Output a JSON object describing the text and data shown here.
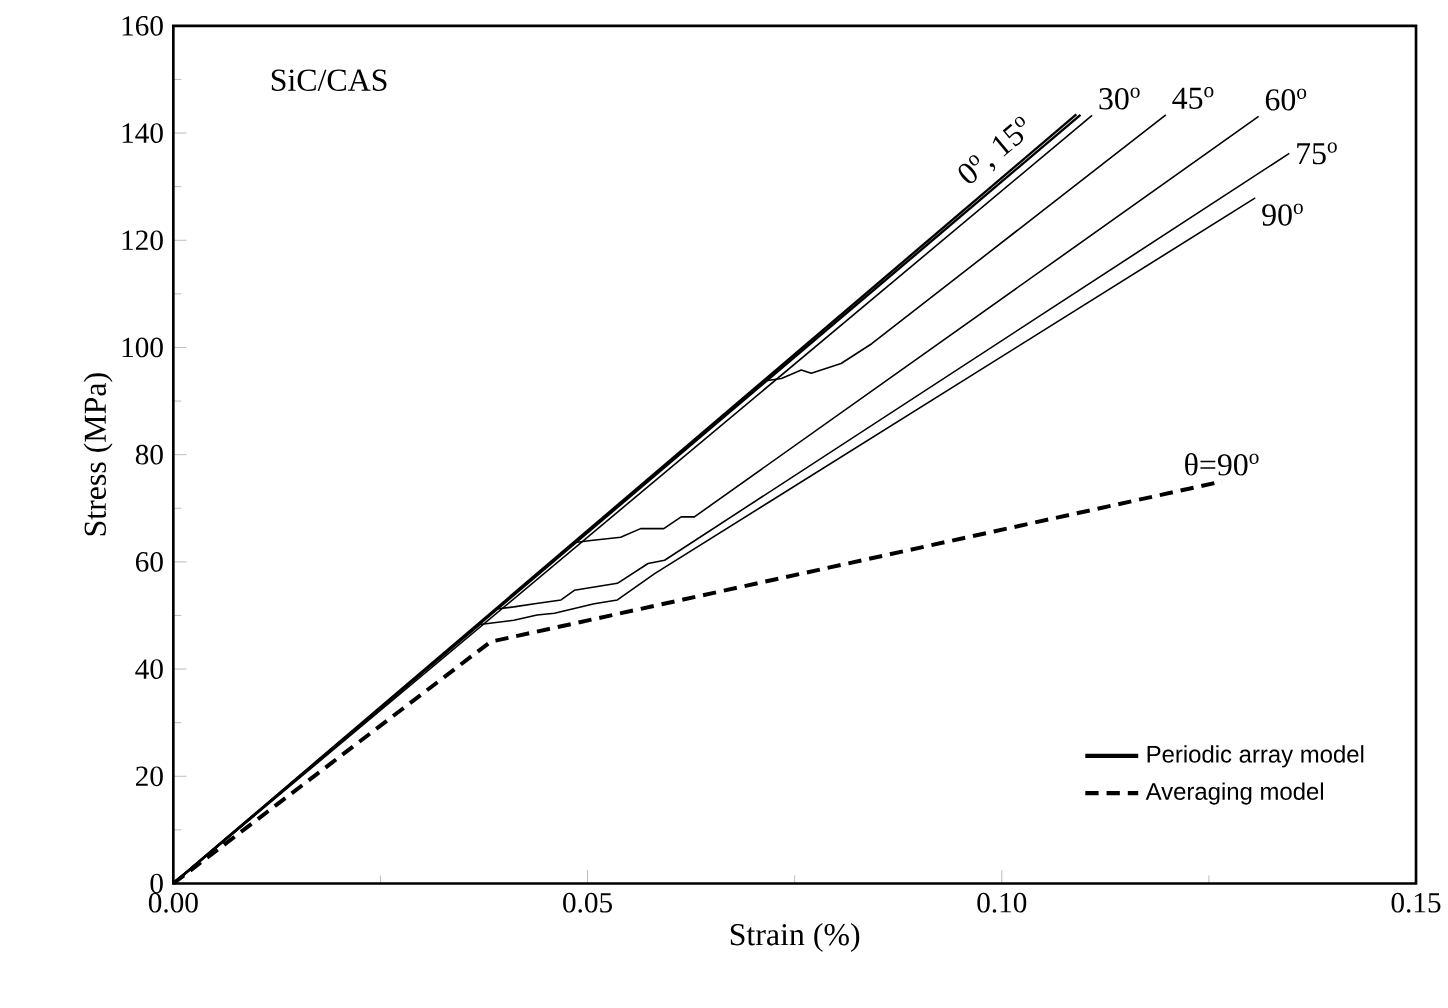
{
  "chart_data": {
    "type": "line",
    "xlabel": "Strain (%)",
    "ylabel": "Stress (MPa)",
    "xlim": [
      0,
      0.15
    ],
    "ylim": [
      0,
      160
    ],
    "xticks": [
      {
        "value": 0,
        "label": "0.00"
      },
      {
        "value": 0.05,
        "label": "0.05"
      },
      {
        "value": 0.1,
        "label": "0.10"
      },
      {
        "value": 0.15,
        "label": "0.15"
      }
    ],
    "yticks": [
      0,
      20,
      40,
      60,
      80,
      100,
      120,
      140,
      160
    ],
    "grid": false,
    "legend": "bottom right",
    "marker": "none",
    "series": [
      {
        "name": "Periodic array model",
        "color": "#000000",
        "line_style": "solid",
        "x": [
          0,
          0.109
        ],
        "values": [
          0,
          143.5
        ]
      },
      {
        "color": "#000000",
        "line_style": "solid",
        "x": [
          0,
          0.1095
        ],
        "values": [
          0,
          143.4
        ]
      },
      {
        "color": "#000000",
        "line_style": "solid",
        "x": [
          0,
          0.1109
        ],
        "values": [
          0,
          143.3
        ]
      },
      {
        "color": "#000000",
        "line_style": "solid",
        "x": [
          0,
          0.0715,
          0.0734,
          0.0758,
          0.077,
          0.0806,
          0.0843,
          0.1198
        ],
        "values": [
          0,
          93.8,
          94.2,
          95.8,
          95.2,
          97.0,
          100.7,
          143.4
        ]
      },
      {
        "color": "#000000",
        "line_style": "solid",
        "x": [
          0,
          0.0485,
          0.0504,
          0.054,
          0.0564,
          0.0592,
          0.0613,
          0.0629,
          0.131
        ],
        "values": [
          0,
          63.6,
          64.0,
          64.6,
          66.2,
          66.2,
          68.4,
          68.4,
          143.1
        ]
      },
      {
        "color": "#000000",
        "line_style": "solid",
        "x": [
          0,
          0.039,
          0.0411,
          0.0436,
          0.0468,
          0.0484,
          0.0536,
          0.0573,
          0.0593,
          0.1347
        ],
        "values": [
          0,
          51.2,
          51.6,
          52.2,
          52.9,
          54.7,
          56.0,
          59.7,
          60.3,
          136.2
        ]
      },
      {
        "color": "#000000",
        "line_style": "solid",
        "x": [
          0,
          0.037,
          0.0411,
          0.0439,
          0.046,
          0.0508,
          0.0536,
          0.0581,
          0.1306
        ],
        "values": [
          0,
          48.3,
          49.1,
          50.1,
          50.4,
          52.2,
          52.9,
          57.8,
          127.9
        ]
      },
      {
        "name": "Averaging model",
        "color": "#000000",
        "line_style": "dashed",
        "x": [
          0,
          0.0383,
          0.1266
        ],
        "values": [
          0,
          45.1,
          75.0
        ]
      }
    ],
    "annotations": [
      "SiC/CAS",
      {
        "text": "0$^{o}$, 15$^{o}$",
        "x": 0.1093,
        "y": 143.4
      },
      {
        "text": "30$^{o}$",
        "x": 0.1109,
        "y": 143.3
      },
      {
        "text": "45$^{o}$",
        "x": 0.1198,
        "y": 143.4
      },
      {
        "text": "60$^{o}$",
        "x": 0.131,
        "y": 143.1
      },
      {
        "text": "75$^{o}$",
        "x": 0.1347,
        "y": 136.2
      },
      {
        "text": "90$^{o}$",
        "x": 0.1306,
        "y": 127.9
      },
      {
        "text": "θ=90$^{o}$",
        "x": 0.1266,
        "y": 75.0
      }
    ]
  }
}
